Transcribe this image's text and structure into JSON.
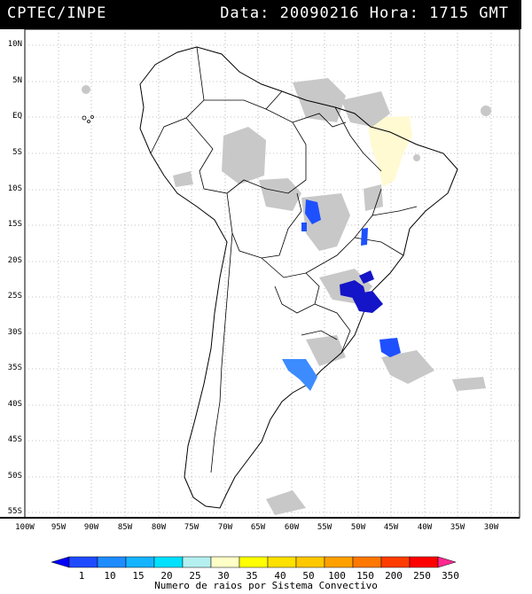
{
  "header": {
    "title": "CPTEC/INPE",
    "info": "Data: 20090216 Hora: 1715 GMT"
  },
  "axes": {
    "latitudes": [
      "10N",
      "5N",
      "EQ",
      "5S",
      "10S",
      "15S",
      "20S",
      "25S",
      "30S",
      "35S",
      "40S",
      "45S",
      "50S",
      "55S"
    ],
    "longitudes": [
      "100W",
      "95W",
      "90W",
      "85W",
      "80W",
      "75W",
      "70W",
      "65W",
      "60W",
      "55W",
      "50W",
      "45W",
      "40W",
      "35W",
      "30W"
    ]
  },
  "colorbar": {
    "labels": [
      "1",
      "10",
      "15",
      "20",
      "25",
      "30",
      "35",
      "40",
      "50",
      "100",
      "150",
      "200",
      "250",
      "350"
    ],
    "colors": [
      "#0000ff",
      "#1e4bff",
      "#1e8cff",
      "#14b4ff",
      "#00e1ff",
      "#b4f0f0",
      "#ffffc8",
      "#ffff00",
      "#ffe100",
      "#ffc800",
      "#ffa000",
      "#ff7800",
      "#ff3c00",
      "#ff0000",
      "#ff2890"
    ],
    "caption": "Numero de raios por Sistema Convectivo"
  },
  "map_colors": {
    "cloud": "#c8c8c8",
    "storm_dark_blue": "#1414c8",
    "storm_blue": "#1e50ff",
    "storm_light_blue": "#3c8cff",
    "yellow_region": "#fffad2"
  }
}
